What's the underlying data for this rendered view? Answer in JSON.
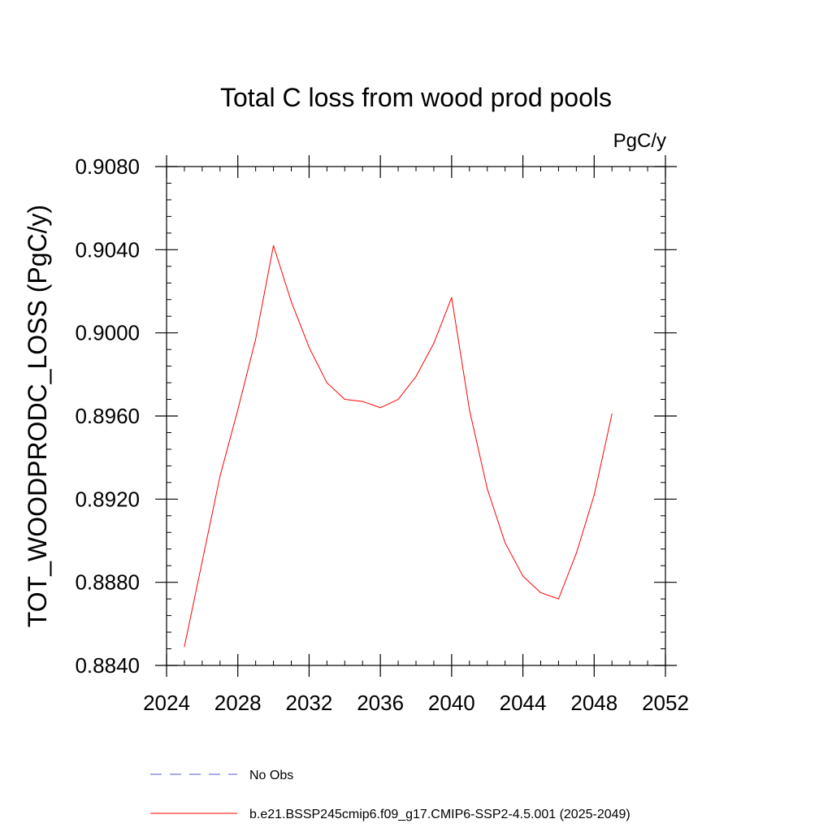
{
  "chart_data": {
    "type": "line",
    "title": "Total C loss from wood prod pools",
    "units": "PgC/y",
    "ylabel": "TOT_WOODPRODC_LOSS  (PgC/y)",
    "xlabel": "",
    "xlim": [
      2024,
      2052
    ],
    "ylim": [
      0.884,
      0.908
    ],
    "x_ticks": [
      2024,
      2028,
      2032,
      2036,
      2040,
      2044,
      2048,
      2052
    ],
    "x_tick_labels": [
      "2024",
      "2028",
      "2032",
      "2036",
      "2040",
      "2044",
      "2048",
      "2052"
    ],
    "y_ticks": [
      0.884,
      0.888,
      0.892,
      0.896,
      0.9,
      0.904,
      0.908
    ],
    "y_tick_labels": [
      "0.8840",
      "0.8880",
      "0.8920",
      "0.8960",
      "0.9000",
      "0.9040",
      "0.9080"
    ],
    "grid": false,
    "legend_placement": "bottom",
    "series": [
      {
        "name": "b.e21.BSSP245cmip6.f09_g17.CMIP6-SSP2-4.5.001 (2025-2049)",
        "color": "#ff0000",
        "dash": "solid",
        "x": [
          2025,
          2026,
          2027,
          2028,
          2029,
          2030,
          2031,
          2032,
          2033,
          2034,
          2035,
          2036,
          2037,
          2038,
          2039,
          2040,
          2041,
          2042,
          2043,
          2044,
          2045,
          2046,
          2047,
          2048,
          2049
        ],
        "y": [
          0.8849,
          0.889,
          0.8931,
          0.8963,
          0.8997,
          0.9042,
          0.9015,
          0.8993,
          0.8976,
          0.8968,
          0.8967,
          0.8964,
          0.8968,
          0.8979,
          0.8995,
          0.9017,
          0.8963,
          0.8925,
          0.8899,
          0.8883,
          0.8875,
          0.8872,
          0.8894,
          0.8922,
          0.8961
        ]
      }
    ],
    "legend": [
      {
        "label": "No Obs",
        "color": "#5555cc",
        "dash": "dashed"
      },
      {
        "label": "b.e21.BSSP245cmip6.f09_g17.CMIP6-SSP2-4.5.001 (2025-2049)",
        "color": "#ff0000",
        "dash": "solid"
      }
    ]
  }
}
